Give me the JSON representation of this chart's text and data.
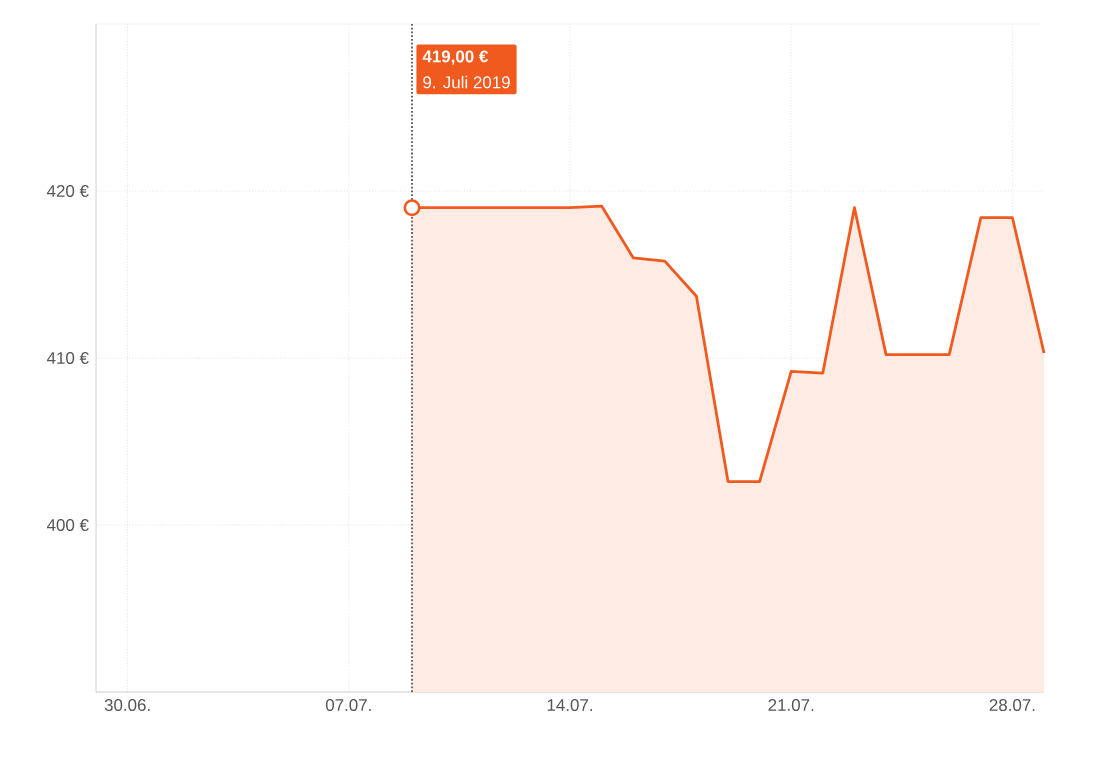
{
  "chart_data": {
    "type": "area",
    "x": [
      "2019-07-09",
      "2019-07-10",
      "2019-07-11",
      "2019-07-12",
      "2019-07-13",
      "2019-07-14",
      "2019-07-15",
      "2019-07-16",
      "2019-07-17",
      "2019-07-18",
      "2019-07-19",
      "2019-07-20",
      "2019-07-21",
      "2019-07-22",
      "2019-07-23",
      "2019-07-24",
      "2019-07-25",
      "2019-07-26",
      "2019-07-27",
      "2019-07-28",
      "2019-07-29"
    ],
    "series": [
      {
        "color": "#f05a1e",
        "values": [
          419,
          419,
          419,
          419,
          419,
          419,
          419.1,
          416.0,
          415.8,
          413.7,
          402.6,
          402.6,
          409.2,
          409.1,
          419.0,
          410.2,
          410.2,
          410.2,
          418.4,
          418.4,
          410.3
        ]
      }
    ],
    "xlim": [
      "2019-06-29",
      "2019-07-29"
    ],
    "xticks": [
      {
        "value": "2019-06-30",
        "label": "30.06."
      },
      {
        "value": "2019-07-07",
        "label": "07.07."
      },
      {
        "value": "2019-07-14",
        "label": "14.07."
      },
      {
        "value": "2019-07-21",
        "label": "21.07."
      },
      {
        "value": "2019-07-28",
        "label": "28.07."
      }
    ],
    "ylim": [
      390,
      430
    ],
    "yticks": [
      {
        "value": 390,
        "label": null
      },
      {
        "value": 400,
        "label": "400 €"
      },
      {
        "value": 410,
        "label": "410 €"
      },
      {
        "value": 420,
        "label": "420 €"
      },
      {
        "value": 430,
        "label": null
      }
    ],
    "grid": true,
    "ref_lines": [
      {
        "axis": "x",
        "value": "2019-07-09",
        "color": "#555555",
        "line_style": "dotted"
      }
    ],
    "annotations": [
      "419,00 €",
      "9. Juli 2019"
    ]
  }
}
